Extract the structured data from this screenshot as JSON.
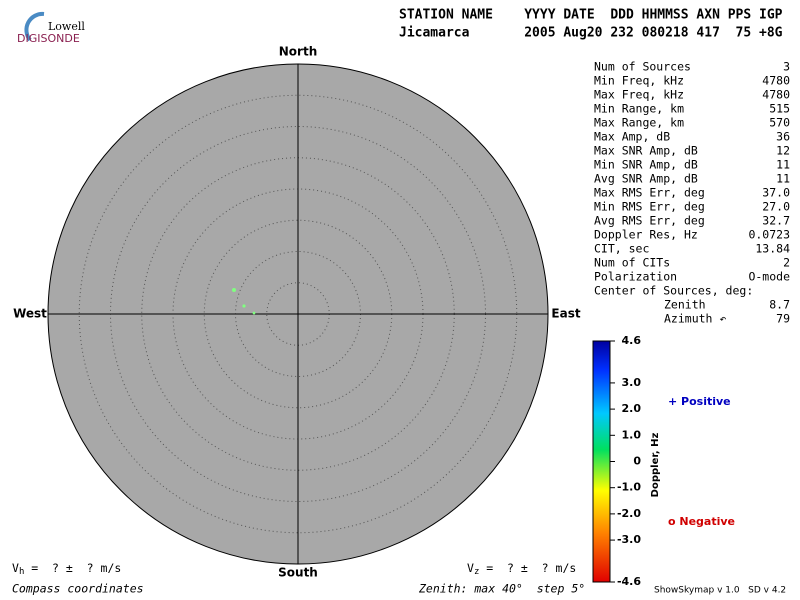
{
  "header": {
    "logo_top": "Lowell",
    "logo_bottom": "DIGISONDE",
    "columns": "STATION NAME    YYYY DATE  DDD HHMMSS AXN PPS IGP",
    "values": "Jicamarca       2005 Aug20 232 080218 417  75 +8G"
  },
  "compass": {
    "north": "North",
    "south": "South",
    "west": "West",
    "east": "East"
  },
  "stats": [
    {
      "label": "Num of Sources",
      "value": "3"
    },
    {
      "label": "Min Freq, kHz",
      "value": "4780"
    },
    {
      "label": "Max Freq, kHz",
      "value": "4780"
    },
    {
      "label": "Min Range, km",
      "value": "515"
    },
    {
      "label": "Max Range, km",
      "value": "570"
    },
    {
      "label": "Max Amp, dB",
      "value": "36"
    },
    {
      "label": "Max SNR Amp, dB",
      "value": "12"
    },
    {
      "label": "Min SNR Amp, dB",
      "value": "11"
    },
    {
      "label": "Avg SNR Amp, dB",
      "value": "11"
    },
    {
      "label": "Max RMS Err, deg",
      "value": "37.0"
    },
    {
      "label": "Min RMS Err, deg",
      "value": "27.0"
    },
    {
      "label": "Avg RMS Err, deg",
      "value": "32.7"
    },
    {
      "label": "Doppler Res, Hz",
      "value": "0.0723"
    },
    {
      "label": "CIT, sec",
      "value": "13.84"
    },
    {
      "label": "Num of CITs",
      "value": "2"
    },
    {
      "label": "Polarization",
      "value": "O-mode"
    },
    {
      "label": "Center of Sources, deg:"
    }
  ],
  "center": [
    {
      "label": "Zenith",
      "value": "8.7"
    },
    {
      "label": "Azimuth ↶",
      "value": "79"
    }
  ],
  "colorbar": {
    "title": "Doppler, Hz",
    "range": [
      -4.6,
      4.6
    ],
    "ticks": [
      4.6,
      {
        "value": 3,
        "label": "3.0"
      },
      {
        "value": 2,
        "label": "2.0"
      },
      {
        "value": 1,
        "label": "1.0"
      },
      0,
      {
        "value": -1,
        "label": "-1.0"
      },
      {
        "value": -2,
        "label": "-2.0"
      },
      {
        "value": -3,
        "label": "-3.0"
      },
      -4.6
    ],
    "positive": "+ Positive",
    "negative": "o Negative"
  },
  "footer": {
    "vh_symbol": "V",
    "vh_sub": "h",
    "vh_text": " =  ? ±  ? m/s",
    "vz_symbol": "V",
    "vz_sub": "z",
    "vz_text": " =  ? ±  ? m/s",
    "coords": "Compass coordinates",
    "zenith": "Zenith: max 40°  step 5°",
    "version": "ShowSkymap v 1.0   SD v 4.2"
  }
}
